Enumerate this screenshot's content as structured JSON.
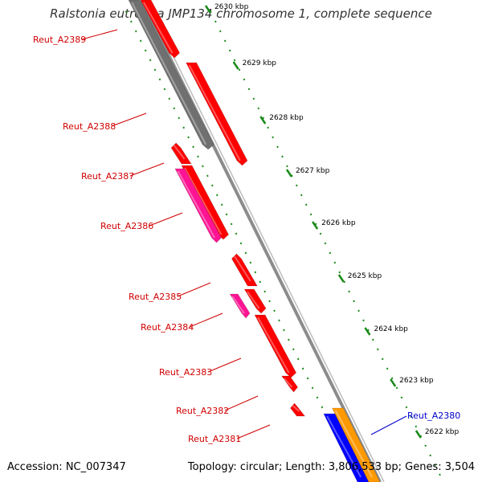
{
  "title": "Ralstonia eutropha JMP134 chromosome 1, complete sequence",
  "footer": {
    "accession_label": "Accession: NC_007347",
    "summary_label": "Topology: circular; Length: 3,806,533 bp; Genes: 3,504"
  },
  "colors": {
    "backbone": "#8c8c8c",
    "tick_green": "#1a8a1a",
    "label_red": "#d00000",
    "label_blue": "#0000cc",
    "red": "#ff0000",
    "gray": "#707070",
    "magenta": "#ff1493",
    "blue": "#0000ff",
    "orange": "#ff9900"
  },
  "ticks": [
    "2630 kbp",
    "2629 kbp",
    "2628 kbp",
    "2627 kbp",
    "2626 kbp",
    "2625 kbp",
    "2624 kbp",
    "2623 kbp",
    "2622 kbp"
  ],
  "genes": [
    {
      "label": "Reut_A2389",
      "side": "left",
      "color": "label_red"
    },
    {
      "label": "Reut_A2388",
      "side": "left",
      "color": "label_red"
    },
    {
      "label": "Reut_A2387",
      "side": "left",
      "color": "label_red"
    },
    {
      "label": "Reut_A2386",
      "side": "left",
      "color": "label_red"
    },
    {
      "label": "Reut_A2385",
      "side": "left",
      "color": "label_red"
    },
    {
      "label": "Reut_A2384",
      "side": "left",
      "color": "label_red"
    },
    {
      "label": "Reut_A2383",
      "side": "left",
      "color": "label_red"
    },
    {
      "label": "Reut_A2382",
      "side": "left",
      "color": "label_red"
    },
    {
      "label": "Reut_A2381",
      "side": "left",
      "color": "label_red"
    },
    {
      "label": "Reut_A2380",
      "side": "right",
      "color": "label_blue"
    }
  ]
}
